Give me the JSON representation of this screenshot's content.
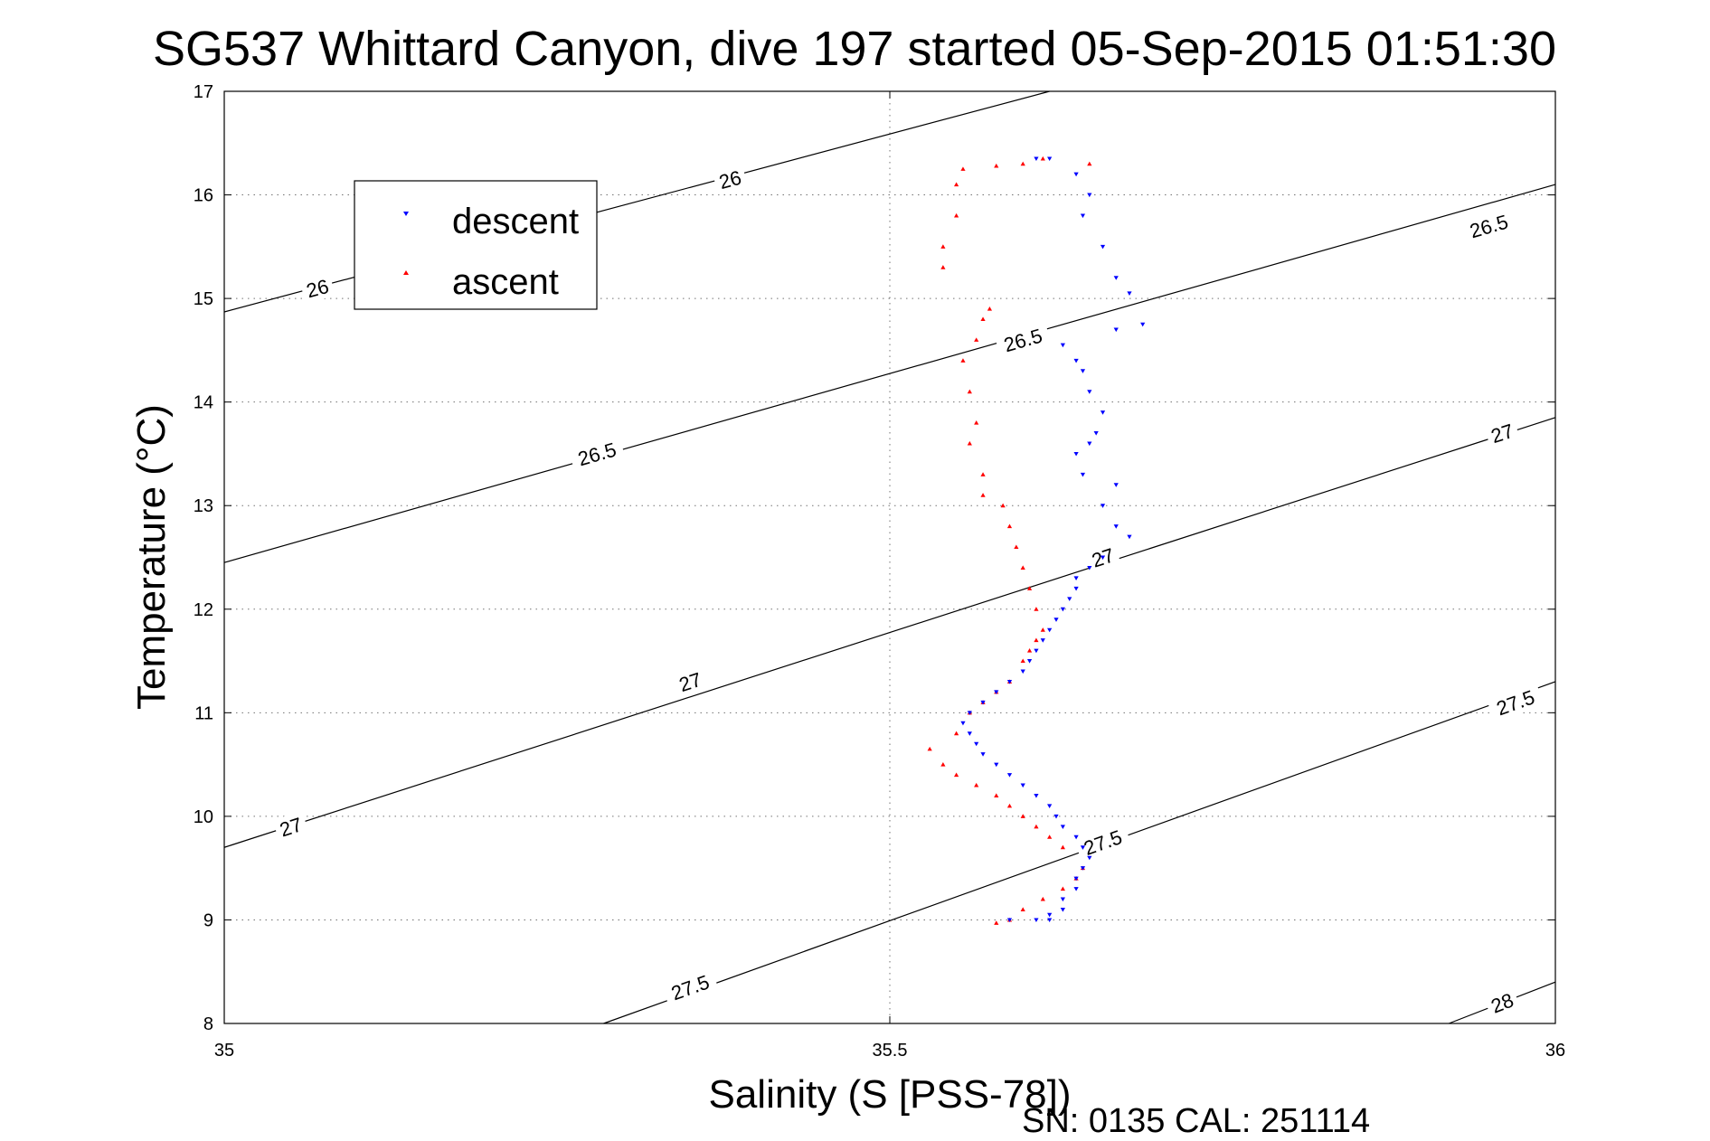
{
  "chart_data": {
    "type": "scatter",
    "title": "SG537 Whittard Canyon, dive 197 started 05-Sep-2015 01:51:30",
    "xlabel": "Salinity (S [PSS-78])",
    "ylabel": "Temperature (°C)",
    "xlim": [
      35,
      36
    ],
    "ylim": [
      8,
      17
    ],
    "x_ticks": [
      "35",
      "35.5",
      "36"
    ],
    "y_ticks": [
      "8",
      "9",
      "10",
      "11",
      "12",
      "13",
      "14",
      "15",
      "16",
      "17"
    ],
    "grid": true,
    "legend_position": "top-left",
    "footer": "SN: 0135  CAL: 251114",
    "colors": {
      "descent": "#0000ff",
      "ascent": "#ff0000",
      "contour": "#000000"
    },
    "series": [
      {
        "name": "descent",
        "marker": "triangle-down",
        "points": [
          [
            35.61,
            9.0
          ],
          [
            35.59,
            9.0
          ],
          [
            35.62,
            9.0
          ],
          [
            35.62,
            9.05
          ],
          [
            35.63,
            9.1
          ],
          [
            35.63,
            9.2
          ],
          [
            35.64,
            9.3
          ],
          [
            35.64,
            9.4
          ],
          [
            35.645,
            9.5
          ],
          [
            35.65,
            9.6
          ],
          [
            35.645,
            9.7
          ],
          [
            35.64,
            9.8
          ],
          [
            35.63,
            9.9
          ],
          [
            35.625,
            10.0
          ],
          [
            35.62,
            10.1
          ],
          [
            35.61,
            10.2
          ],
          [
            35.6,
            10.3
          ],
          [
            35.59,
            10.4
          ],
          [
            35.58,
            10.5
          ],
          [
            35.57,
            10.6
          ],
          [
            35.565,
            10.7
          ],
          [
            35.56,
            10.8
          ],
          [
            35.555,
            10.9
          ],
          [
            35.56,
            11.0
          ],
          [
            35.57,
            11.1
          ],
          [
            35.58,
            11.2
          ],
          [
            35.59,
            11.3
          ],
          [
            35.6,
            11.4
          ],
          [
            35.605,
            11.5
          ],
          [
            35.61,
            11.6
          ],
          [
            35.615,
            11.7
          ],
          [
            35.62,
            11.8
          ],
          [
            35.625,
            11.9
          ],
          [
            35.63,
            12.0
          ],
          [
            35.635,
            12.1
          ],
          [
            35.64,
            12.2
          ],
          [
            35.64,
            12.3
          ],
          [
            35.65,
            12.4
          ],
          [
            35.66,
            12.5
          ],
          [
            35.68,
            12.7
          ],
          [
            35.67,
            12.8
          ],
          [
            35.66,
            13.0
          ],
          [
            35.67,
            13.2
          ],
          [
            35.645,
            13.3
          ],
          [
            35.64,
            13.5
          ],
          [
            35.65,
            13.6
          ],
          [
            35.655,
            13.7
          ],
          [
            35.66,
            13.9
          ],
          [
            35.65,
            14.1
          ],
          [
            35.645,
            14.3
          ],
          [
            35.64,
            14.4
          ],
          [
            35.63,
            14.55
          ],
          [
            35.67,
            14.7
          ],
          [
            35.69,
            14.75
          ],
          [
            35.68,
            15.05
          ],
          [
            35.67,
            15.2
          ],
          [
            35.66,
            15.5
          ],
          [
            35.645,
            15.8
          ],
          [
            35.65,
            16.0
          ],
          [
            35.64,
            16.2
          ],
          [
            35.61,
            16.35
          ],
          [
            35.62,
            16.35
          ]
        ]
      },
      {
        "name": "ascent",
        "marker": "triangle-up",
        "points": [
          [
            35.58,
            8.97
          ],
          [
            35.59,
            9.0
          ],
          [
            35.6,
            9.1
          ],
          [
            35.615,
            9.2
          ],
          [
            35.63,
            9.3
          ],
          [
            35.64,
            9.4
          ],
          [
            35.645,
            9.5
          ],
          [
            35.63,
            9.7
          ],
          [
            35.62,
            9.8
          ],
          [
            35.61,
            9.9
          ],
          [
            35.6,
            10.0
          ],
          [
            35.59,
            10.1
          ],
          [
            35.58,
            10.2
          ],
          [
            35.565,
            10.3
          ],
          [
            35.55,
            10.4
          ],
          [
            35.54,
            10.5
          ],
          [
            35.53,
            10.65
          ],
          [
            35.55,
            10.8
          ],
          [
            35.56,
            11.0
          ],
          [
            35.57,
            11.1
          ],
          [
            35.58,
            11.2
          ],
          [
            35.59,
            11.3
          ],
          [
            35.6,
            11.5
          ],
          [
            35.605,
            11.6
          ],
          [
            35.61,
            11.7
          ],
          [
            35.615,
            11.8
          ],
          [
            35.61,
            12.0
          ],
          [
            35.605,
            12.2
          ],
          [
            35.6,
            12.4
          ],
          [
            35.595,
            12.6
          ],
          [
            35.59,
            12.8
          ],
          [
            35.585,
            13.0
          ],
          [
            35.57,
            13.1
          ],
          [
            35.57,
            13.3
          ],
          [
            35.56,
            13.6
          ],
          [
            35.565,
            13.8
          ],
          [
            35.56,
            14.1
          ],
          [
            35.555,
            14.4
          ],
          [
            35.565,
            14.6
          ],
          [
            35.57,
            14.8
          ],
          [
            35.575,
            14.9
          ],
          [
            35.54,
            15.3
          ],
          [
            35.54,
            15.5
          ],
          [
            35.55,
            15.8
          ],
          [
            35.55,
            16.1
          ],
          [
            35.555,
            16.25
          ],
          [
            35.58,
            16.28
          ],
          [
            35.6,
            16.3
          ],
          [
            35.615,
            16.35
          ],
          [
            35.65,
            16.3
          ]
        ]
      }
    ],
    "contours": [
      {
        "label": "26",
        "endpoints": [
          [
            35.0,
            14.87
          ],
          [
            35.62,
            17.0
          ]
        ],
        "labels_at": [
          [
            35.07,
            15.1
          ],
          [
            35.38,
            16.15
          ]
        ]
      },
      {
        "label": "26.5",
        "endpoints": [
          [
            35.0,
            12.45
          ],
          [
            36.0,
            16.1
          ]
        ],
        "labels_at": [
          [
            35.28,
            13.5
          ],
          [
            35.6,
            14.6
          ],
          [
            35.95,
            15.7
          ]
        ]
      },
      {
        "label": "27",
        "endpoints": [
          [
            35.0,
            9.7
          ],
          [
            36.0,
            13.85
          ]
        ],
        "labels_at": [
          [
            35.05,
            9.9
          ],
          [
            35.35,
            11.3
          ],
          [
            35.66,
            12.5
          ],
          [
            35.96,
            13.7
          ]
        ]
      },
      {
        "label": "27.5",
        "endpoints": [
          [
            35.285,
            8.0
          ],
          [
            36.0,
            11.3
          ]
        ],
        "labels_at": [
          [
            35.35,
            8.35
          ],
          [
            35.66,
            9.75
          ],
          [
            35.97,
            11.1
          ]
        ]
      },
      {
        "label": "28",
        "endpoints": [
          [
            35.92,
            8.0
          ],
          [
            36.0,
            8.4
          ]
        ],
        "labels_at": [
          [
            35.96,
            8.2
          ]
        ]
      }
    ]
  }
}
